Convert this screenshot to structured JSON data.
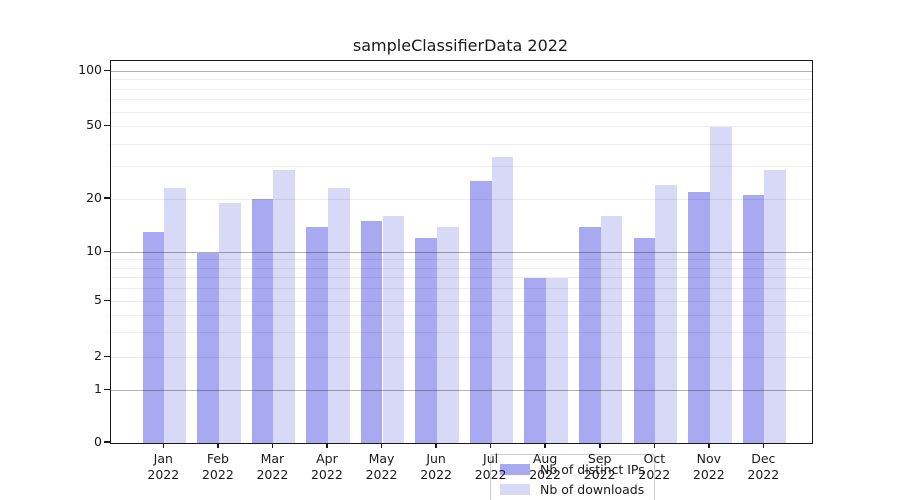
{
  "title": "sampleClassifierData 2022",
  "chart_data": {
    "type": "bar",
    "title": "sampleClassifierData 2022",
    "categories": [
      "Jan",
      "Feb",
      "Mar",
      "Apr",
      "May",
      "Jun",
      "Jul",
      "Aug",
      "Sep",
      "Oct",
      "Nov",
      "Dec"
    ],
    "year": "2022",
    "series": [
      {
        "name": "Nb of distinct IPs",
        "color": "#a9a9f2",
        "values": [
          13,
          10,
          20,
          14,
          15,
          12,
          25,
          7,
          14,
          12,
          22,
          21
        ]
      },
      {
        "name": "Nb of downloads",
        "color": "#d8d8f7",
        "values": [
          23,
          19,
          29,
          23,
          16,
          14,
          34,
          7,
          16,
          24,
          50,
          29
        ]
      }
    ],
    "yticks": [
      0,
      1,
      2,
      5,
      10,
      20,
      50,
      100
    ],
    "ylim": [
      0,
      100
    ],
    "yscale": "symlog",
    "grid": "horizontal, major and minor",
    "legend_position": "lower center"
  },
  "colors": {
    "bar_ips": "#a9a9f2",
    "bar_downloads": "#d8d8f7",
    "grid_major": "#b3b3b3",
    "grid_minor": "#ededed",
    "spine": "#1a1a1a",
    "legend_border": "#cccccc"
  }
}
